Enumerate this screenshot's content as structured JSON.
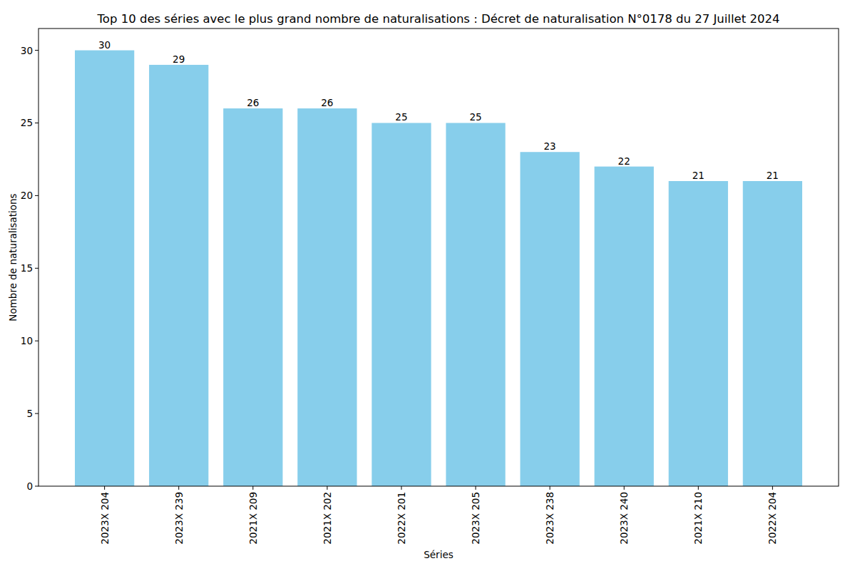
{
  "chart_data": {
    "type": "bar",
    "title": "Top 10 des séries avec le plus grand nombre de naturalisations : Décret de naturalisation N°0178 du 27 Juillet 2024",
    "x_label": "Séries",
    "y_label": "Nombre de naturalisations",
    "categories": [
      "2023X 204",
      "2023X 239",
      "2021X 209",
      "2021X 202",
      "2022X 201",
      "2023X 205",
      "2023X 238",
      "2023X 240",
      "2021X 210",
      "2022X 204"
    ],
    "values": [
      30,
      29,
      26,
      26,
      25,
      25,
      23,
      22,
      21,
      21
    ],
    "color": "#87ceeb",
    "ylim": [
      0,
      31.5
    ],
    "yticks": [
      0,
      5,
      10,
      15,
      20,
      25,
      30
    ],
    "grid": false,
    "data_labels": true
  }
}
